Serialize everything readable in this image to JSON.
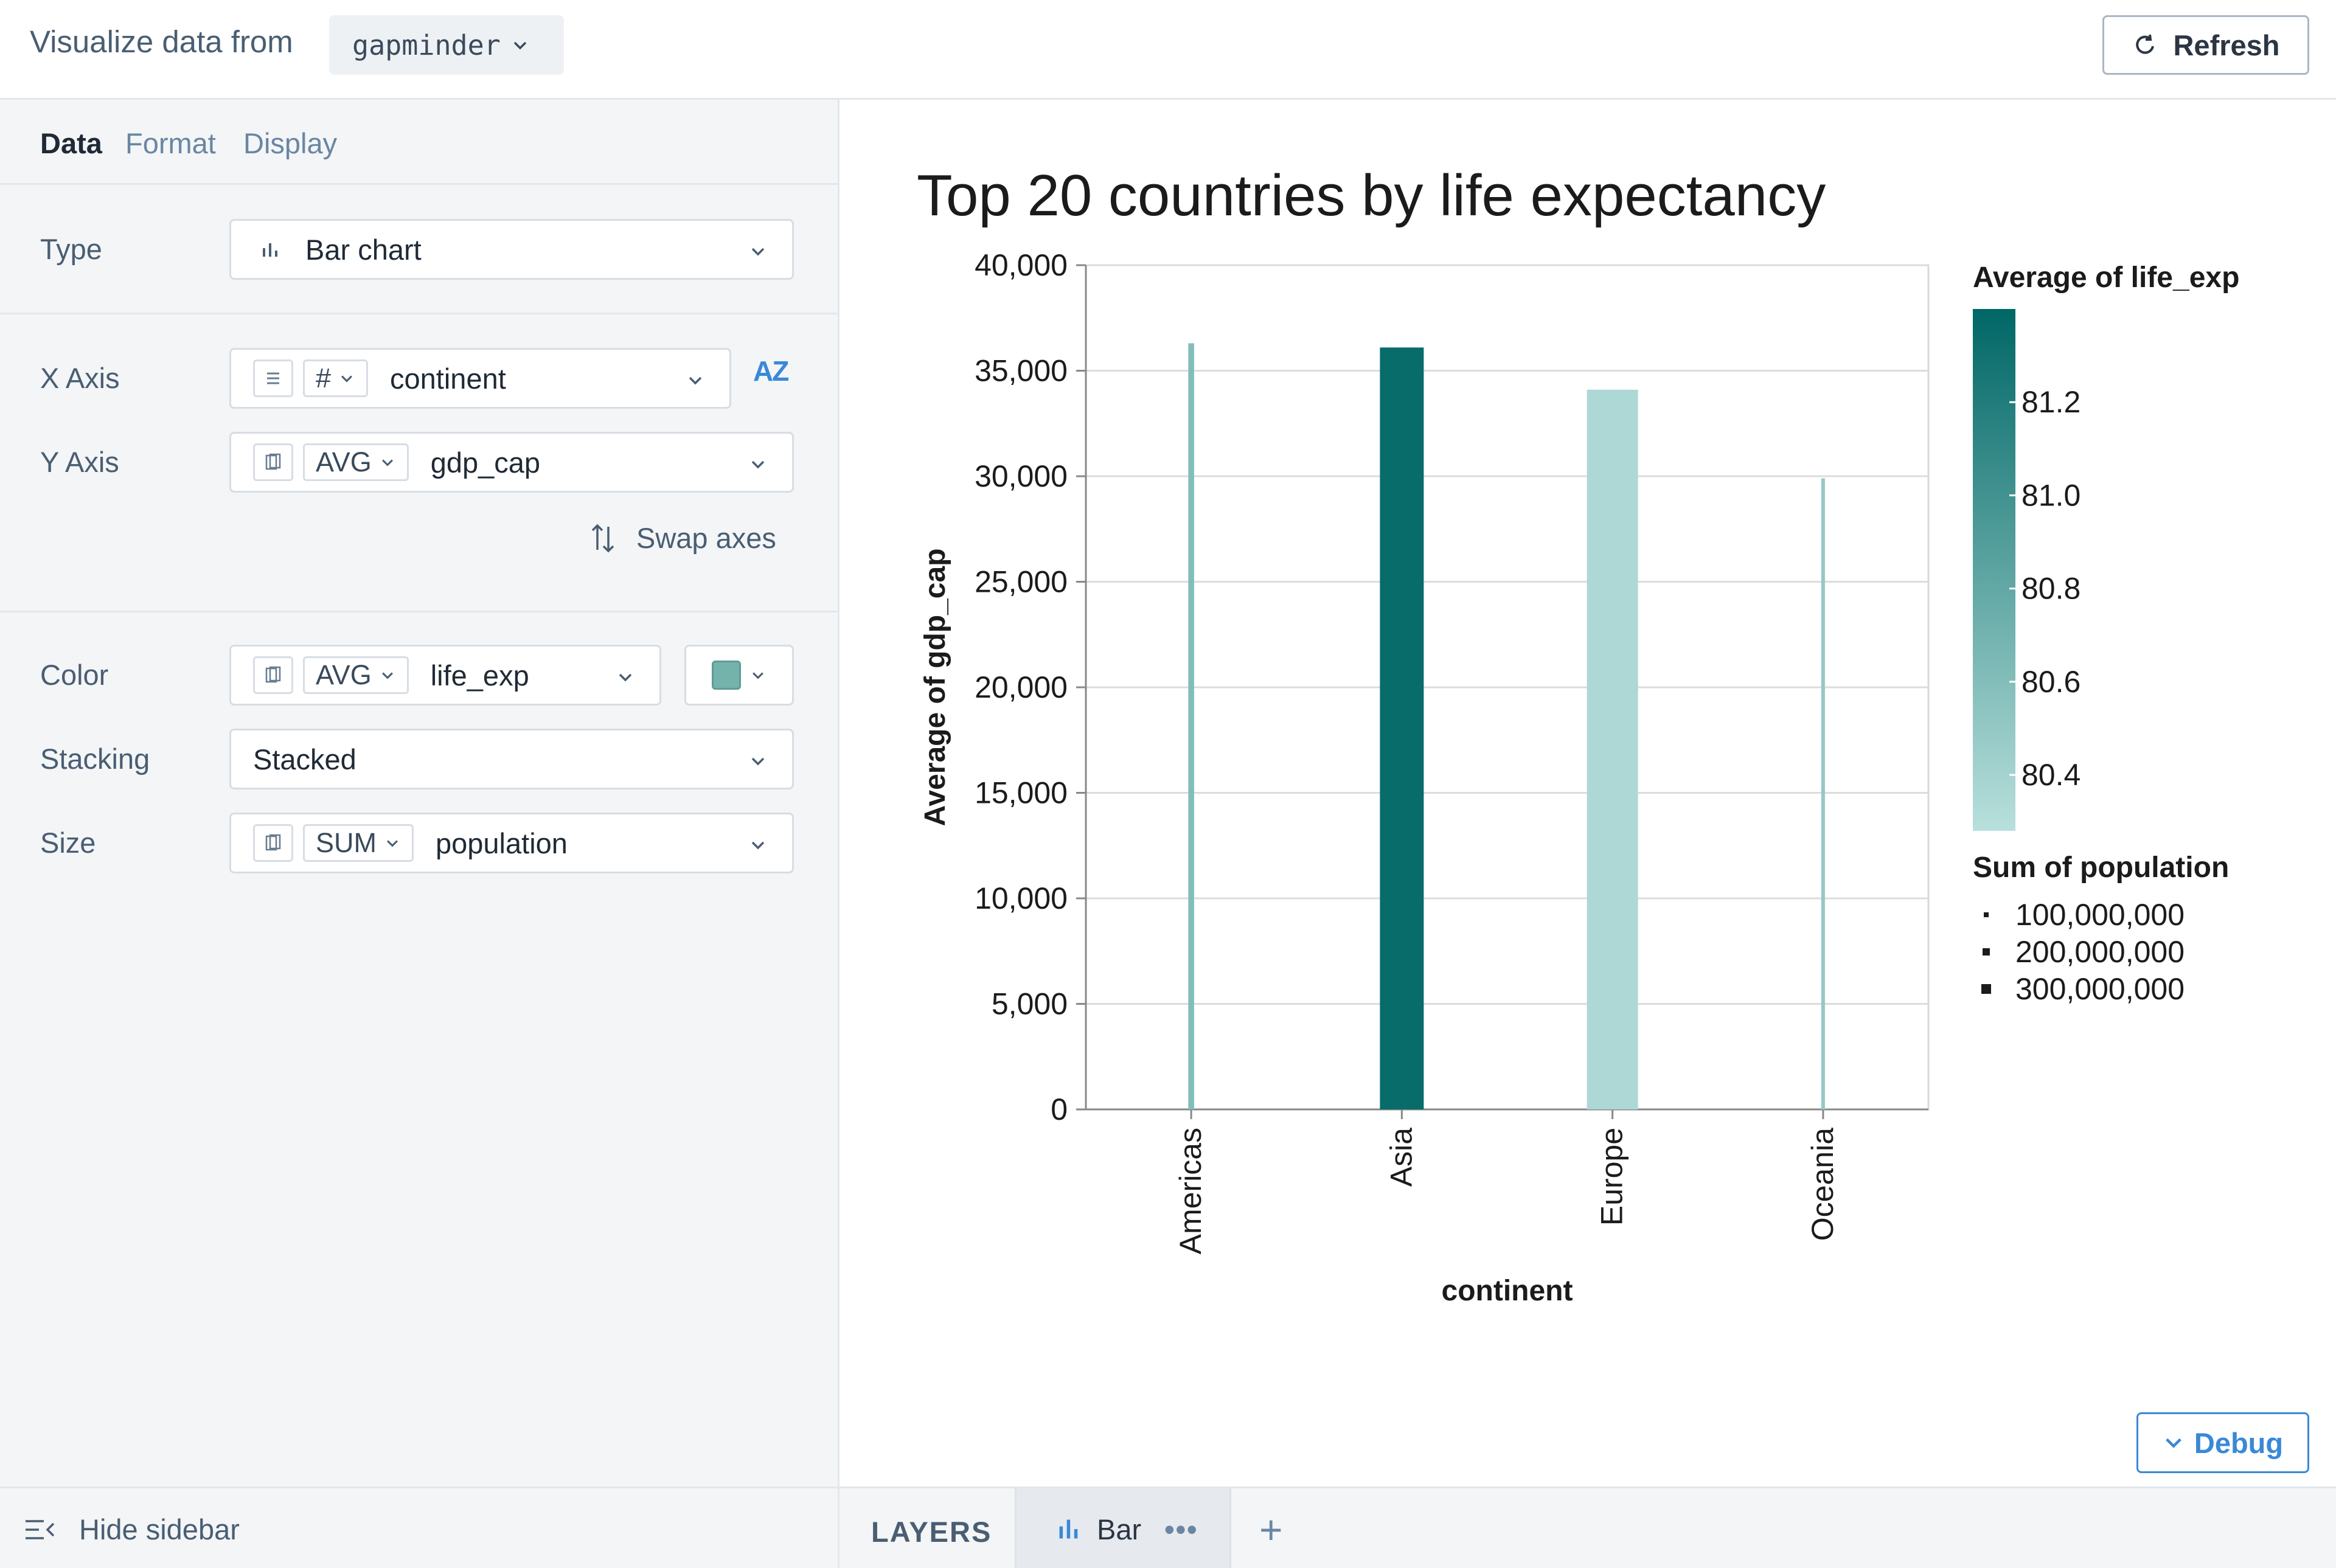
{
  "header": {
    "label": "Visualize data from",
    "source": "gapminder",
    "refresh_label": "Refresh"
  },
  "sidebar": {
    "tabs": [
      "Data",
      "Format",
      "Display"
    ],
    "type": {
      "label": "Type",
      "value": "Bar chart"
    },
    "x_axis": {
      "label": "X Axis",
      "agg": "#",
      "field": "continent"
    },
    "y_axis": {
      "label": "Y Axis",
      "agg": "AVG",
      "field": "gdp_cap"
    },
    "swap_label": "Swap axes",
    "sort_label": "AZ",
    "color": {
      "label": "Color",
      "agg": "AVG",
      "field": "life_exp",
      "swatch": "#74b3ac"
    },
    "stacking": {
      "label": "Stacking",
      "value": "Stacked"
    },
    "size": {
      "label": "Size",
      "agg": "SUM",
      "field": "population"
    }
  },
  "bottom": {
    "hide_sidebar": "Hide sidebar",
    "layers_label": "LAYERS",
    "layer_name": "Bar",
    "add": "+"
  },
  "debug_label": "Debug",
  "chart_data": {
    "type": "bar",
    "title": "Top 20 countries by life expectancy",
    "xlabel": "continent",
    "ylabel": "Average of gdp_cap",
    "categories": [
      "Americas",
      "Asia",
      "Europe",
      "Oceania"
    ],
    "values": [
      36300,
      36100,
      34100,
      29900
    ],
    "color_values": [
      80.6,
      81.35,
      80.35,
      80.5
    ],
    "size_values": [
      40000000,
      300000000,
      350000000,
      25000000
    ],
    "ylim": [
      0,
      40000
    ],
    "yticks": [
      0,
      5000,
      10000,
      15000,
      20000,
      25000,
      30000,
      35000,
      40000
    ],
    "ytick_labels": [
      "0",
      "5,000",
      "10,000",
      "15,000",
      "20,000",
      "25,000",
      "30,000",
      "35,000",
      "40,000"
    ],
    "grid": true,
    "color_legend": {
      "title": "Average of life_exp",
      "range": [
        80.28,
        81.4
      ],
      "ticks": [
        81.2,
        81.0,
        80.8,
        80.6,
        80.4
      ],
      "tick_labels": [
        "81.2",
        "81.0",
        "80.8",
        "80.6",
        "80.4"
      ],
      "color_low": "#b8e0dc",
      "color_high": "#006766"
    },
    "size_legend": {
      "title": "Sum of population",
      "labels": [
        "100,000,000",
        "200,000,000",
        "300,000,000"
      ]
    },
    "legend_position": "right"
  }
}
